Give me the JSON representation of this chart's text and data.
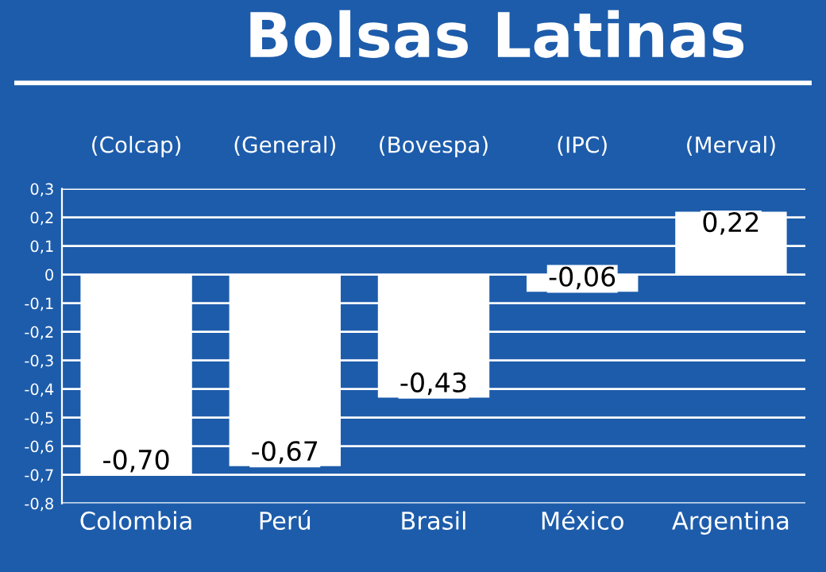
{
  "chart_data": {
    "type": "bar",
    "title": "Bolsas Latinas",
    "categories": [
      "Colombia",
      "Perú",
      "Brasil",
      "México",
      "Argentina"
    ],
    "values": [
      -0.7,
      -0.67,
      -0.43,
      -0.06,
      0.22
    ],
    "value_labels": [
      "-0,70",
      "-0,67",
      "-0,43",
      "-0,06",
      "0,22"
    ],
    "color": "#ffffff",
    "annotations": [
      "(Colcap)",
      "(General)",
      "(Bovespa)",
      "(IPC)",
      "(Merval)"
    ],
    "ylim": [
      -0.8,
      0.3
    ],
    "yticks": [
      {
        "value": -0.8,
        "label": "-0,8"
      },
      {
        "value": -0.7,
        "label": "-0,7"
      },
      {
        "value": -0.6,
        "label": "-0,6"
      },
      {
        "value": -0.5,
        "label": "-0,5"
      },
      {
        "value": -0.4,
        "label": "-0,4"
      },
      {
        "value": -0.3,
        "label": "-0,3"
      },
      {
        "value": -0.2,
        "label": "-0,2"
      },
      {
        "value": -0.1,
        "label": "-0,1"
      },
      {
        "value": 0,
        "label": "0"
      },
      {
        "value": 0.1,
        "label": "0,1"
      },
      {
        "value": 0.2,
        "label": "0,2"
      },
      {
        "value": 0.3,
        "label": "0,3"
      }
    ],
    "grid": "y"
  }
}
